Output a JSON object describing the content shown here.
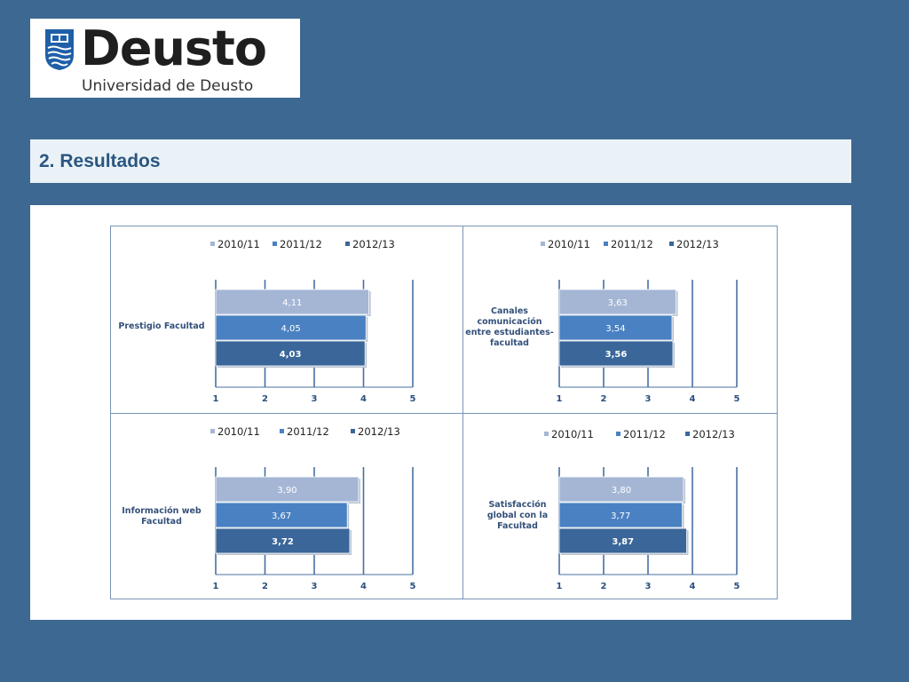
{
  "logo": {
    "wordmark": "Deusto",
    "subtitle": "Universidad de Deusto"
  },
  "title": "2. Resultados",
  "colors": {
    "background": "#3d6892",
    "title_text": "#2b5680",
    "series_2010_11": "#a5b6d5",
    "series_2011_12": "#4a81c2",
    "series_2012_13": "#3a6699"
  },
  "chart_data": [
    {
      "type": "bar",
      "orientation": "horizontal",
      "category": "Prestigio Facultad",
      "series": [
        {
          "name": "2010/11",
          "value": 4.11,
          "label": "4,11"
        },
        {
          "name": "2011/12",
          "value": 4.05,
          "label": "4,05"
        },
        {
          "name": "2012/13",
          "value": 4.03,
          "label": "4,03"
        }
      ],
      "xlim": [
        1,
        5
      ],
      "xticks": [
        "1",
        "2",
        "3",
        "4",
        "5"
      ],
      "grid": true,
      "legend": "top"
    },
    {
      "type": "bar",
      "orientation": "horizontal",
      "category": "Canales comunicación entre estudiantes-facultad",
      "series": [
        {
          "name": "2010/11",
          "value": 3.63,
          "label": "3,63"
        },
        {
          "name": "2011/12",
          "value": 3.54,
          "label": "3,54"
        },
        {
          "name": "2012/13",
          "value": 3.56,
          "label": "3,56"
        }
      ],
      "xlim": [
        1,
        5
      ],
      "xticks": [
        "1",
        "2",
        "3",
        "4",
        "5"
      ],
      "grid": true,
      "legend": "top"
    },
    {
      "type": "bar",
      "orientation": "horizontal",
      "category": "Información web Facultad",
      "series": [
        {
          "name": "2010/11",
          "value": 3.9,
          "label": "3,90"
        },
        {
          "name": "2011/12",
          "value": 3.67,
          "label": "3,67"
        },
        {
          "name": "2012/13",
          "value": 3.72,
          "label": "3,72"
        }
      ],
      "xlim": [
        1,
        5
      ],
      "xticks": [
        "1",
        "2",
        "3",
        "4",
        "5"
      ],
      "grid": true,
      "legend": "top"
    },
    {
      "type": "bar",
      "orientation": "horizontal",
      "category": "Satisfacción global con la Facultad",
      "series": [
        {
          "name": "2010/11",
          "value": 3.8,
          "label": "3,80"
        },
        {
          "name": "2011/12",
          "value": 3.77,
          "label": "3,77"
        },
        {
          "name": "2012/13",
          "value": 3.87,
          "label": "3,87"
        }
      ],
      "xlim": [
        1,
        5
      ],
      "xticks": [
        "1",
        "2",
        "3",
        "4",
        "5"
      ],
      "grid": true,
      "legend": "top"
    }
  ]
}
